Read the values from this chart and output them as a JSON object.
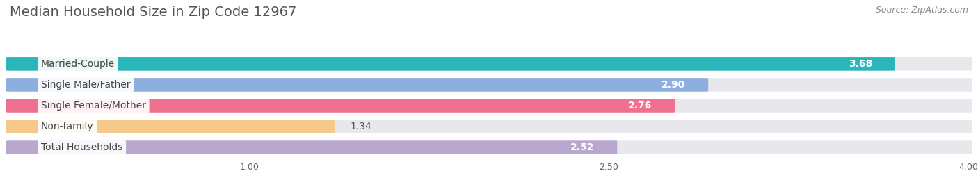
{
  "title": "Median Household Size in Zip Code 12967",
  "source": "Source: ZipAtlas.com",
  "categories": [
    "Married-Couple",
    "Single Male/Father",
    "Single Female/Mother",
    "Non-family",
    "Total Households"
  ],
  "values": [
    3.68,
    2.9,
    2.76,
    1.34,
    2.52
  ],
  "bar_colors": [
    "#2ab5b8",
    "#8faee0",
    "#f07090",
    "#f5c98a",
    "#b8a8d0"
  ],
  "bar_bg_color": "#e8e8ec",
  "value_in_bar": [
    true,
    true,
    false,
    false,
    false
  ],
  "xlim_min": 0,
  "xlim_max": 4.0,
  "xticks": [
    1.0,
    2.5,
    4.0
  ],
  "bg_color": "#ffffff",
  "bar_height": 0.62,
  "bar_gap": 0.38,
  "label_fontsize": 10,
  "value_fontsize": 10,
  "title_fontsize": 14,
  "source_fontsize": 9
}
